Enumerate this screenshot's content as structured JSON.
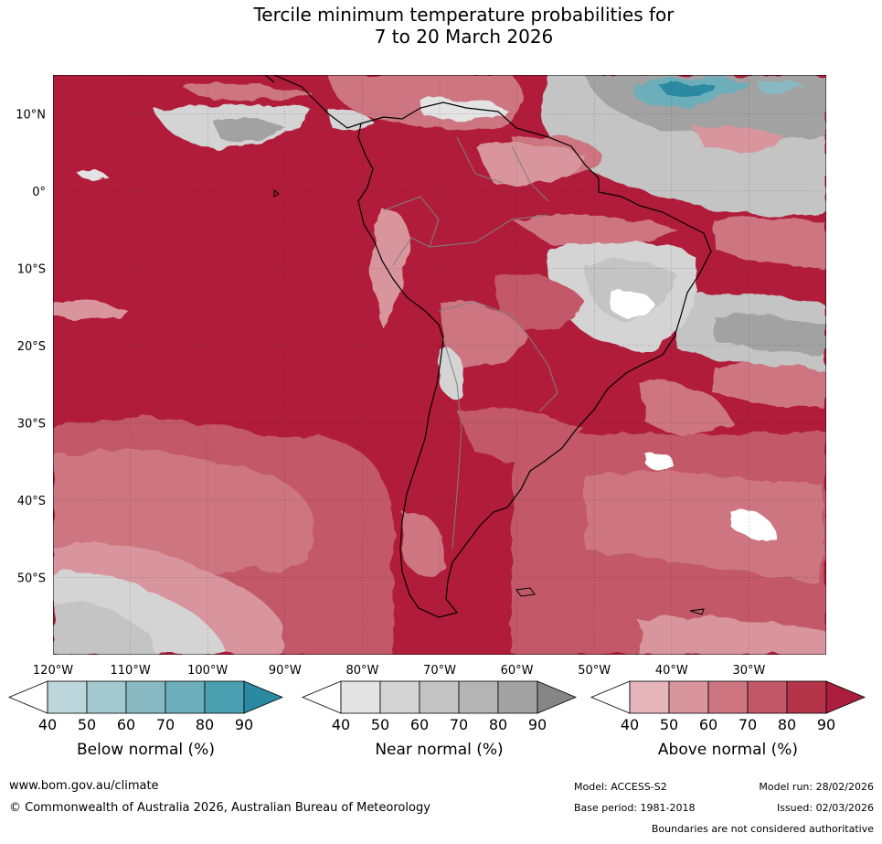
{
  "title": {
    "line1": "Tercile minimum temperature probabilities for",
    "line2": "7 to 20 March 2026"
  },
  "map": {
    "lat_labels": [
      "10°N",
      "0°",
      "10°S",
      "20°S",
      "30°S",
      "40°S",
      "50°S"
    ],
    "lon_labels": [
      "120°W",
      "110°W",
      "100°W",
      "90°W",
      "80°W",
      "70°W",
      "60°W",
      "50°W",
      "40°W",
      "30°W"
    ],
    "extent": {
      "lon_min": -120,
      "lon_max": -20,
      "lat_min": -60,
      "lat_max": 15
    },
    "colors": {
      "ocean_above_high": "#b01c3a",
      "land_outline": "#000000",
      "border_outline": "#808080"
    }
  },
  "legends": [
    {
      "label": "Below normal (%)",
      "ticks": [
        "40",
        "50",
        "60",
        "70",
        "80",
        "90"
      ],
      "colors": [
        "#bcd6dc",
        "#a3c8ce",
        "#88b9c3",
        "#6caeb9",
        "#4aa0b0",
        "#2a8aa1"
      ]
    },
    {
      "label": "Near normal (%)",
      "ticks": [
        "40",
        "50",
        "60",
        "70",
        "80",
        "90"
      ],
      "colors": [
        "#e3e3e3",
        "#d4d4d4",
        "#c4c4c4",
        "#b4b4b4",
        "#a2a2a2",
        "#858585"
      ]
    },
    {
      "label": "Above normal (%)",
      "ticks": [
        "40",
        "50",
        "60",
        "70",
        "80",
        "90"
      ],
      "colors": [
        "#e4b5bb",
        "#d9959e",
        "#cd7581",
        "#c25867",
        "#b6344a",
        "#ad1d3d"
      ]
    }
  ],
  "footer": {
    "website": "www.bom.gov.au/climate",
    "copyright": "© Commonwealth of Australia 2026, Australian Bureau of Meteorology",
    "model": "Model: ACCESS-S2",
    "base_period": "Base period: 1981-2018",
    "model_run": "Model run: 28/02/2026",
    "issued": "Issued: 02/03/2026",
    "disclaimer": "Boundaries are not considered authoritative"
  }
}
